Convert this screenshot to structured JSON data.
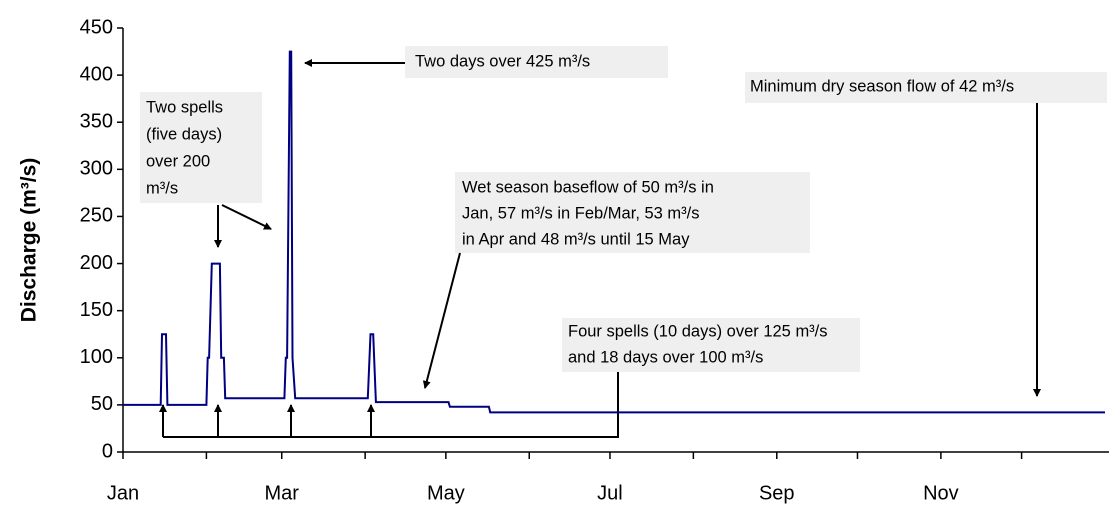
{
  "chart_data": {
    "type": "line",
    "y_label": "Discharge (m³/s)",
    "xlim": [
      0,
      365
    ],
    "xticks": [
      {
        "value": 0,
        "label": "Jan"
      },
      {
        "value": 31,
        "label": null
      },
      {
        "value": 59,
        "label": "Mar"
      },
      {
        "value": 90,
        "label": null
      },
      {
        "value": 120,
        "label": "May"
      },
      {
        "value": 151,
        "label": null
      },
      {
        "value": 181,
        "label": "Jul"
      },
      {
        "value": 212,
        "label": null
      },
      {
        "value": 243,
        "label": "Sep"
      },
      {
        "value": 273,
        "label": null
      },
      {
        "value": 304,
        "label": "Nov"
      },
      {
        "value": 334,
        "label": null
      }
    ],
    "ylim": [
      0,
      450
    ],
    "yticks": [
      0,
      50,
      100,
      150,
      200,
      250,
      300,
      350,
      400,
      450
    ],
    "series": [
      {
        "color": "#000080",
        "x": [
          0,
          14,
          14.5,
          16,
          16.5,
          31,
          31.5,
          32,
          33,
          36,
          36.5,
          37.5,
          38,
          39,
          60,
          60.5,
          61,
          62,
          62.5,
          63,
          64,
          91,
          92,
          93,
          94,
          121,
          121.5,
          136,
          136.5,
          365
        ],
        "values": [
          50,
          50,
          125,
          125,
          50,
          50,
          100,
          100,
          200,
          200,
          100,
          100,
          57,
          57,
          57,
          100,
          100,
          425,
          425,
          100,
          57,
          57,
          125,
          125,
          53,
          53,
          48,
          48,
          42,
          42
        ]
      }
    ],
    "annotations": [
      {
        "lines": [
          "Two days over 425 m³/s"
        ]
      },
      {
        "lines": [
          "Minimum dry season flow of 42 m³/s"
        ]
      },
      {
        "lines": [
          "Two spells",
          "(five days)",
          "over 200",
          "m³/s"
        ]
      },
      {
        "lines": [
          "Wet season baseflow of 50 m³/s in",
          "Jan, 57 m³/s in Feb/Mar, 53 m³/s",
          "in Apr and 48 m³/s until 15 May"
        ]
      },
      {
        "lines": [
          "Four spells (10 days) over 125 m³/s",
          "and 18 days over 100 m³/s"
        ]
      }
    ]
  }
}
